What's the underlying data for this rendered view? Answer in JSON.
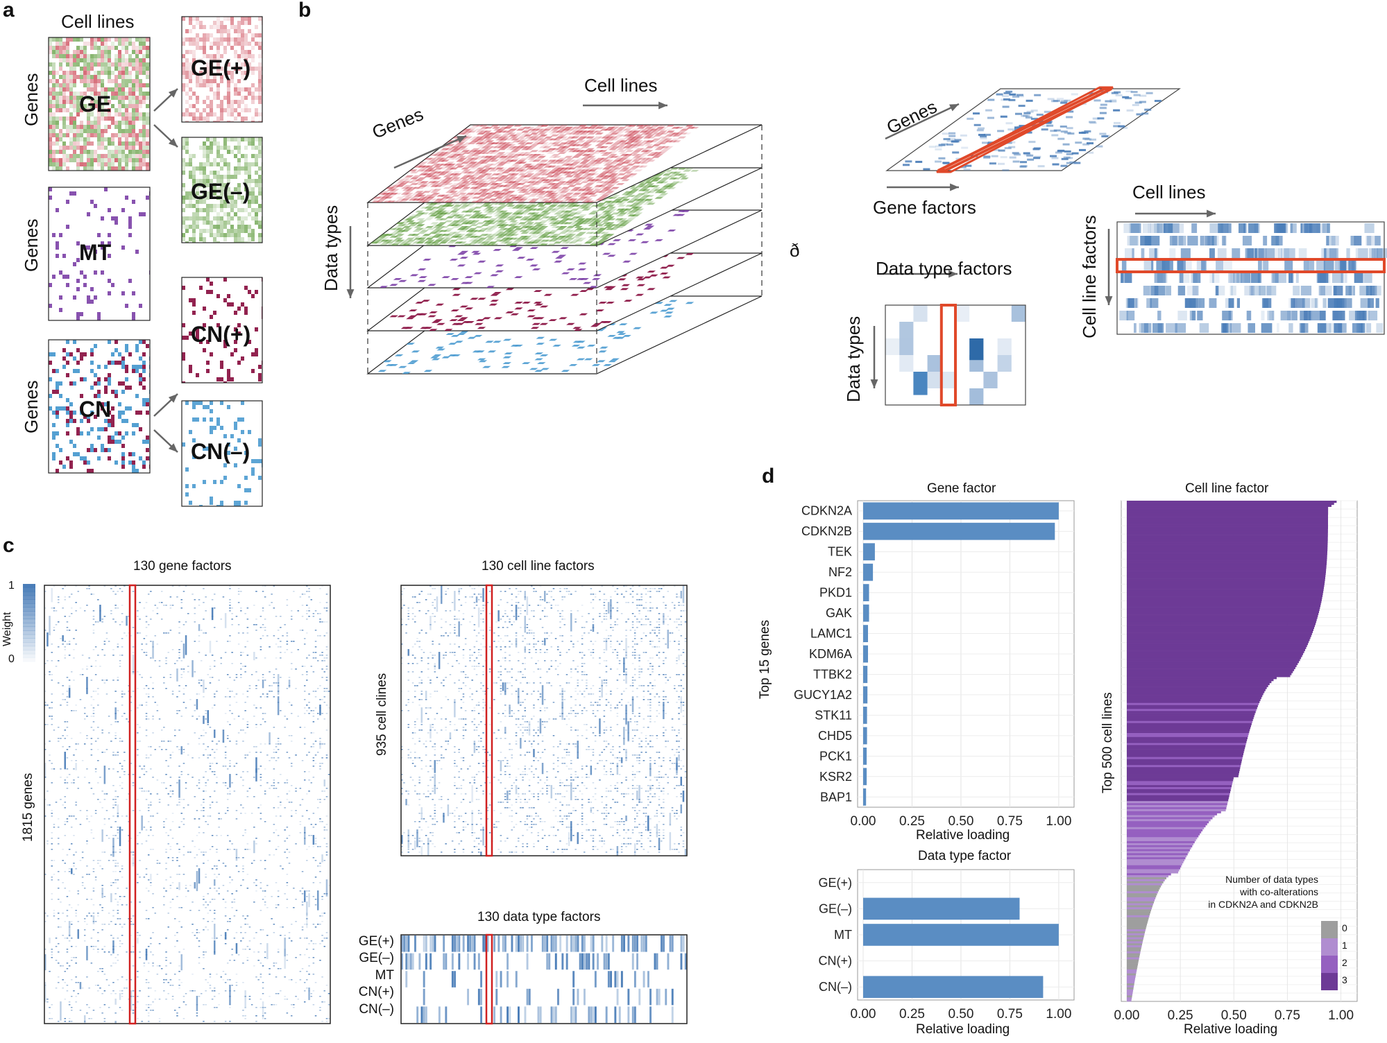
{
  "panels": {
    "a": "a",
    "b": "b",
    "c": "c",
    "d": "d"
  },
  "colors": {
    "ge_pos": "#c83a4a",
    "ge_neg": "#5c9a3a",
    "mt": "#7b3fa6",
    "cn_pos": "#8c1646",
    "cn_neg": "#4b9bd0",
    "blue": "#4a7db8",
    "bar": "#5a8dc3",
    "red": "#e0492a"
  },
  "panel_a": {
    "title": "Cell lines",
    "row_label": "Genes",
    "ge": "GE",
    "mt": "MT",
    "cn": "CN",
    "ge_pos": "GE(+)",
    "ge_neg": "GE(–)",
    "cn_pos": "CN(+)",
    "cn_neg": "CN(–)"
  },
  "panel_b": {
    "cell_lines": "Cell lines",
    "genes": "Genes",
    "data_types": "Data types",
    "approx": "ð",
    "genes2": "Genes",
    "gene_factors": "Gene factors",
    "data_type_factors": "Data type factors",
    "data_types2": "Data types",
    "cell_lines2": "Cell lines",
    "cell_line_factors": "Cell line factors"
  },
  "panel_c": {
    "gene_title": "130 gene factors",
    "cell_title": "130 cell line factors",
    "dtype_title": "130 data type factors",
    "genes_axis": "1815 genes",
    "cells_axis": "935 cell clines",
    "weight": "Weight",
    "w1": "1",
    "w0": "0",
    "dtypes": [
      "GE(+)",
      "GE(–)",
      "MT",
      "CN(+)",
      "CN(–)"
    ]
  },
  "panel_d": {
    "xticks": [
      "0.00",
      "0.25",
      "0.50",
      "0.75",
      "1.00"
    ],
    "xlabel": "Relative loading",
    "legend_title1": "Number of data types",
    "legend_title2": "with co-alterations",
    "legend_title3": "in CDKN2A and CDKN2B",
    "legend_items": [
      "0",
      "1",
      "2",
      "3"
    ],
    "legend_colors": [
      "#9e9e9e",
      "#b08dd0",
      "#9560c0",
      "#6d3a96"
    ],
    "cell_title": "Cell line factor",
    "cell_ylabel": "Top 500 cell lines"
  },
  "chart_data": [
    {
      "type": "bar",
      "orientation": "horizontal",
      "title": "Gene factor",
      "ylabel": "Top 15 genes",
      "xlabel": "Relative loading",
      "categories": [
        "CDKN2A",
        "CDKN2B",
        "TEK",
        "NF2",
        "PKD1",
        "GAK",
        "LAMC1",
        "KDM6A",
        "TTBK2",
        "GUCY1A2",
        "STK11",
        "CHD5",
        "PCK1",
        "KSR2",
        "BAP1"
      ],
      "values": [
        1.0,
        0.98,
        0.06,
        0.05,
        0.03,
        0.03,
        0.025,
        0.025,
        0.022,
        0.022,
        0.02,
        0.02,
        0.018,
        0.018,
        0.015
      ],
      "xlim": [
        0,
        1.05
      ]
    },
    {
      "type": "bar",
      "orientation": "horizontal",
      "title": "Data type factor",
      "xlabel": "Relative loading",
      "categories": [
        "GE(+)",
        "GE(–)",
        "MT",
        "CN(+)",
        "CN(–)"
      ],
      "values": [
        0.0,
        0.8,
        1.0,
        0.0,
        0.92
      ],
      "xlim": [
        0,
        1.05
      ]
    }
  ]
}
